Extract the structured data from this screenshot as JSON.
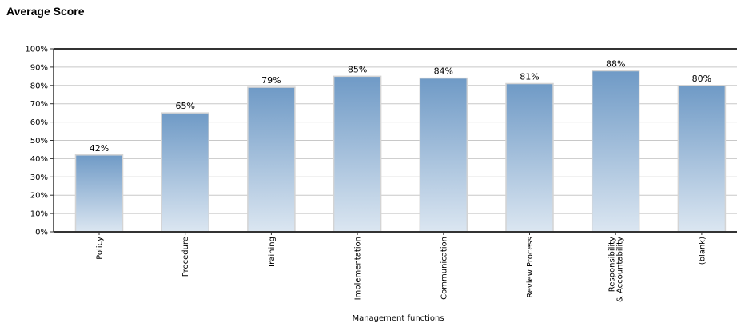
{
  "page": {
    "title": "Average Score"
  },
  "chart_data": {
    "type": "bar",
    "title": "",
    "xlabel": "Management functions",
    "ylabel": "",
    "ylim": [
      0,
      100
    ],
    "y_ticks": [
      "0%",
      "10%",
      "20%",
      "30%",
      "40%",
      "50%",
      "60%",
      "70%",
      "80%",
      "90%",
      "100%"
    ],
    "categories": [
      [
        "Policy"
      ],
      [
        "Procedure"
      ],
      [
        "Training"
      ],
      [
        "Implementation"
      ],
      [
        "Communication"
      ],
      [
        "Review Process"
      ],
      [
        "Responsibility",
        "& Accountability"
      ],
      [
        "(blank)"
      ]
    ],
    "values": [
      42,
      65,
      79,
      85,
      84,
      81,
      88,
      80
    ],
    "data_labels": [
      "42%",
      "65%",
      "79%",
      "85%",
      "84%",
      "81%",
      "88%",
      "80%"
    ],
    "grid": true,
    "legend": "none",
    "colors": {
      "bar_top": "#6f9ac6",
      "bar_bottom": "#dbe6f1",
      "grid": "#c8c8c8",
      "axis": "#333333"
    }
  }
}
